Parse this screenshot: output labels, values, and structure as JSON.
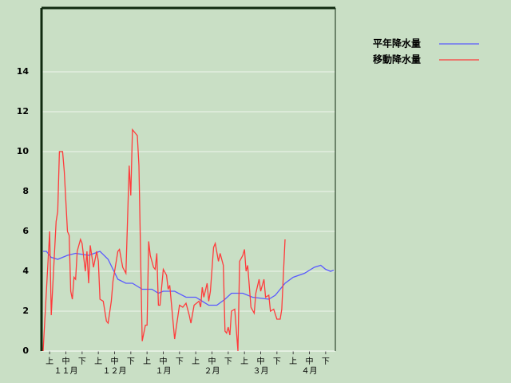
{
  "chart_data": {
    "type": "line",
    "xlim": [
      0,
      180
    ],
    "ylim": [
      0,
      17.2
    ],
    "yticks": [
      0,
      2,
      4,
      6,
      8,
      10,
      12,
      14
    ],
    "xticks": [
      {
        "value": 5,
        "label": "上"
      },
      {
        "value": 15,
        "label": "中"
      },
      {
        "value": 25,
        "label": "下"
      },
      {
        "value": 35,
        "label": "上"
      },
      {
        "value": 45,
        "label": "中"
      },
      {
        "value": 55,
        "label": "下"
      },
      {
        "value": 65,
        "label": "上"
      },
      {
        "value": 75,
        "label": "中"
      },
      {
        "value": 85,
        "label": "下"
      },
      {
        "value": 95,
        "label": "上"
      },
      {
        "value": 105,
        "label": "中"
      },
      {
        "value": 115,
        "label": "下"
      },
      {
        "value": 125,
        "label": "上"
      },
      {
        "value": 135,
        "label": "中"
      },
      {
        "value": 145,
        "label": "下"
      },
      {
        "value": 155,
        "label": "上"
      },
      {
        "value": 165,
        "label": "中"
      },
      {
        "value": 175,
        "label": "下"
      }
    ],
    "month_ticks": [
      {
        "value": 15,
        "label": "１１月"
      },
      {
        "value": 45,
        "label": "１２月"
      },
      {
        "value": 75,
        "label": "１月"
      },
      {
        "value": 105,
        "label": "２月"
      },
      {
        "value": 135,
        "label": "３月"
      },
      {
        "value": 165,
        "label": "４月"
      }
    ],
    "grid": true,
    "series": [
      {
        "name": "平年降水量",
        "color": "#5a5aff",
        "x": [
          1,
          3,
          6,
          10,
          16,
          21,
          29,
          36,
          41,
          47,
          52,
          56,
          62,
          68,
          72,
          75,
          82,
          89,
          95,
          103,
          108,
          113,
          117,
          124,
          130,
          140,
          144,
          150,
          155,
          162,
          168,
          172,
          175,
          178,
          180
        ],
        "values": [
          5,
          5,
          4.7,
          4.6,
          4.8,
          4.9,
          4.8,
          5,
          4.6,
          3.6,
          3.4,
          3.4,
          3.1,
          3.1,
          2.9,
          3,
          3,
          2.7,
          2.7,
          2.3,
          2.3,
          2.6,
          2.9,
          2.9,
          2.7,
          2.6,
          2.8,
          3.4,
          3.7,
          3.9,
          4.2,
          4.3,
          4.1,
          4,
          4.05
        ]
      },
      {
        "name": "移動降水量",
        "color": "#ff3b3b",
        "x": [
          1,
          5,
          6,
          9,
          10,
          11,
          13,
          14,
          16,
          17,
          18,
          19,
          20,
          21,
          22,
          24,
          25,
          27,
          28,
          29,
          30,
          32,
          34,
          35,
          36,
          38,
          40,
          41,
          43,
          44,
          47,
          48,
          50,
          52,
          54,
          55,
          56,
          59,
          60,
          62,
          64,
          65,
          66,
          67,
          69,
          70,
          71,
          72,
          73,
          75,
          77,
          78,
          79,
          82,
          83,
          85,
          87,
          89,
          91,
          92,
          94,
          97,
          98,
          99,
          100,
          102,
          103,
          104,
          106,
          107,
          109,
          110,
          112,
          113,
          114,
          115,
          116,
          117,
          119,
          121,
          122,
          124,
          125,
          126,
          127,
          129,
          131,
          132,
          134,
          135,
          137,
          138,
          140,
          141,
          143,
          145,
          147,
          148,
          150
        ],
        "values": [
          0,
          6,
          1.8,
          6.5,
          7,
          10,
          10,
          9,
          6,
          5.8,
          3,
          2.6,
          3.7,
          3.6,
          5,
          5.6,
          5.4,
          4,
          5,
          3.4,
          5.3,
          4.2,
          5,
          4.5,
          2.6,
          2.5,
          1.5,
          1.4,
          2.5,
          3.5,
          5,
          5.1,
          4.2,
          3.9,
          9.3,
          7.8,
          11.1,
          10.8,
          9.3,
          0.5,
          1.3,
          1.3,
          5.5,
          4.8,
          4.2,
          4.1,
          4.9,
          2.3,
          2.3,
          4.1,
          3.8,
          3.1,
          3.3,
          0.6,
          1.2,
          2.3,
          2.2,
          2.4,
          1.8,
          1.4,
          2.3,
          2.5,
          2.2,
          3.2,
          2.7,
          3.4,
          2.5,
          3,
          5.2,
          5.4,
          4.5,
          4.9,
          4.3,
          1,
          0.9,
          1.2,
          0.8,
          2,
          2.1,
          0,
          4.5,
          4.8,
          5.1,
          4,
          4.3,
          2.2,
          1.9,
          2.9,
          3.6,
          3,
          3.6,
          2.7,
          2.8,
          2,
          2.1,
          1.6,
          1.6,
          2.1,
          5.6
        ]
      }
    ]
  }
}
